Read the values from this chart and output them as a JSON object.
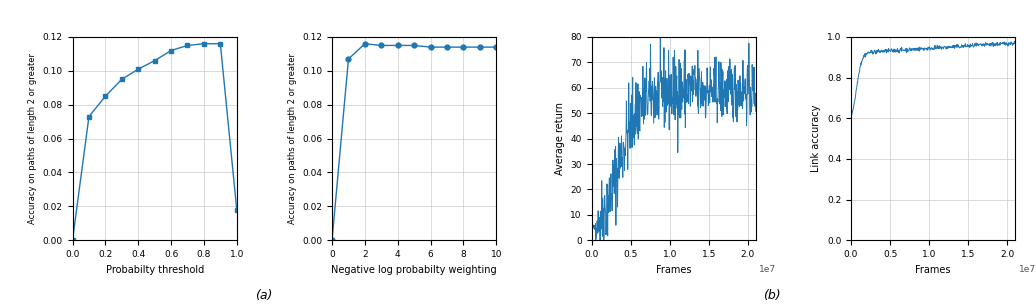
{
  "plot1": {
    "xlabel": "Probabilty threshold",
    "ylabel": "Accuracy on paths of length 2 or greater",
    "x": [
      0.0,
      0.1,
      0.2,
      0.3,
      0.4,
      0.5,
      0.6,
      0.7,
      0.8,
      0.9,
      1.0
    ],
    "y": [
      0.0,
      0.073,
      0.085,
      0.095,
      0.101,
      0.106,
      0.112,
      0.115,
      0.116,
      0.116,
      0.018
    ],
    "xlim": [
      0.0,
      1.0
    ],
    "ylim": [
      0.0,
      0.12
    ],
    "yticks": [
      0.0,
      0.02,
      0.04,
      0.06,
      0.08,
      0.1,
      0.12
    ],
    "xticks": [
      0.0,
      0.2,
      0.4,
      0.6,
      0.8,
      1.0
    ],
    "color": "#1f77b4"
  },
  "plot2": {
    "xlabel": "Negative log probabilty weighting",
    "ylabel": "Accuracy on paths of length 2 or greater",
    "x": [
      0,
      1,
      2,
      3,
      4,
      5,
      6,
      7,
      8,
      9,
      10
    ],
    "y": [
      0.0,
      0.107,
      0.116,
      0.115,
      0.115,
      0.115,
      0.114,
      0.114,
      0.114,
      0.114,
      0.114
    ],
    "xlim": [
      0,
      10
    ],
    "ylim": [
      0.0,
      0.12
    ],
    "yticks": [
      0.0,
      0.02,
      0.04,
      0.06,
      0.08,
      0.1,
      0.12
    ],
    "xticks": [
      0,
      2,
      4,
      6,
      8,
      10
    ],
    "color": "#1f77b4"
  },
  "plot3": {
    "xlabel": "Frames",
    "ylabel": "Average return",
    "xlim": [
      0.0,
      21000000.0
    ],
    "ylim": [
      0,
      80
    ],
    "yticks": [
      0,
      10,
      20,
      30,
      40,
      50,
      60,
      70,
      80
    ],
    "xticks": [
      0.0,
      5000000,
      10000000,
      15000000,
      20000000
    ],
    "xtick_labels": [
      "0.0",
      "0.5",
      "1.0",
      "1.5",
      "2.0"
    ],
    "color": "#1f77b4"
  },
  "plot4": {
    "xlabel": "Frames",
    "ylabel": "Link accuracy",
    "xlim": [
      0.0,
      21000000.0
    ],
    "ylim": [
      0.0,
      1.0
    ],
    "yticks": [
      0.0,
      0.2,
      0.4,
      0.6,
      0.8,
      1.0
    ],
    "xticks": [
      0.0,
      5000000,
      10000000,
      15000000,
      20000000
    ],
    "xtick_labels": [
      "0.0",
      "0.5",
      "1.0",
      "1.5",
      "2.0"
    ],
    "color": "#1f77b4"
  },
  "caption_a": "(a)",
  "caption_b": "(b)",
  "line_color": "#1f77b4",
  "bg_color": "#ffffff",
  "grid_color": "#cccccc"
}
